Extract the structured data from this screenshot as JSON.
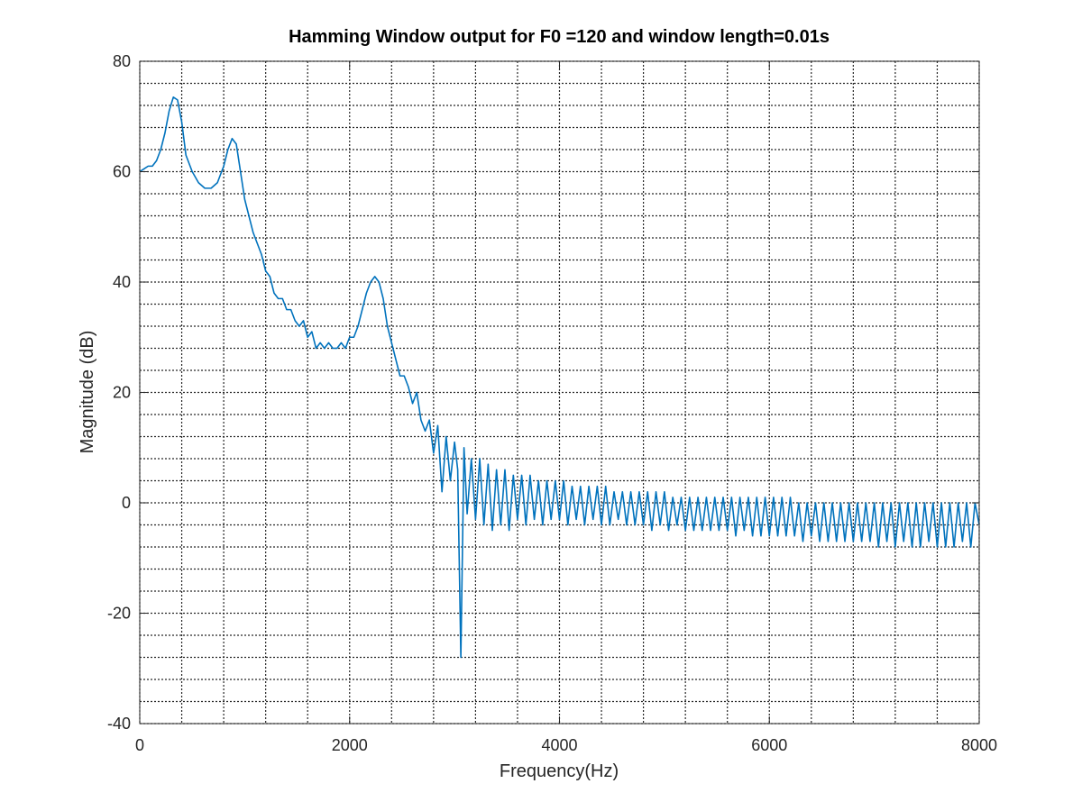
{
  "chart_data": {
    "type": "line",
    "title": "Hamming Window output for F0 =120 and window length=0.01s",
    "xlabel": "Frequency(Hz)",
    "ylabel": "Magnitude (dB)",
    "xlim": [
      0,
      8000
    ],
    "ylim": [
      -40,
      80
    ],
    "xticks": [
      0,
      2000,
      4000,
      6000,
      8000
    ],
    "yticks": [
      -40,
      -20,
      0,
      20,
      40,
      60,
      80
    ],
    "xtick_labels": [
      "0",
      "2000",
      "4000",
      "6000",
      "8000"
    ],
    "ytick_labels": [
      "-40",
      "-20",
      "0",
      "20",
      "40",
      "60",
      "80"
    ],
    "major_grid_x": [
      0,
      400,
      800,
      1200,
      1600,
      2000,
      2400,
      2800,
      3200,
      3600,
      4000,
      4400,
      4800,
      5200,
      5600,
      6000,
      6400,
      6800,
      7200,
      7600,
      8000
    ],
    "major_grid_y": [
      -40,
      -36,
      -32,
      -28,
      -24,
      -20,
      -16,
      -12,
      -8,
      -4,
      0,
      4,
      8,
      12,
      16,
      20,
      24,
      28,
      32,
      36,
      40,
      44,
      48,
      52,
      56,
      60,
      64,
      68,
      72,
      76,
      80
    ],
    "grid": true,
    "line_color": "#0072BD",
    "series": [
      {
        "values": [
          [
            0,
            60
          ],
          [
            40,
            60.5
          ],
          [
            80,
            61
          ],
          [
            120,
            61
          ],
          [
            160,
            62
          ],
          [
            200,
            64
          ],
          [
            240,
            67
          ],
          [
            280,
            71
          ],
          [
            320,
            73.5
          ],
          [
            360,
            73
          ],
          [
            400,
            69
          ],
          [
            440,
            63
          ],
          [
            500,
            60
          ],
          [
            560,
            58
          ],
          [
            620,
            57
          ],
          [
            680,
            57
          ],
          [
            740,
            58
          ],
          [
            800,
            61
          ],
          [
            840,
            64
          ],
          [
            880,
            66
          ],
          [
            920,
            65
          ],
          [
            960,
            60
          ],
          [
            1000,
            55
          ],
          [
            1040,
            52
          ],
          [
            1080,
            49
          ],
          [
            1120,
            47
          ],
          [
            1160,
            45
          ],
          [
            1200,
            42
          ],
          [
            1240,
            41
          ],
          [
            1280,
            38
          ],
          [
            1320,
            37
          ],
          [
            1360,
            37
          ],
          [
            1400,
            35
          ],
          [
            1440,
            35
          ],
          [
            1480,
            33
          ],
          [
            1520,
            32
          ],
          [
            1560,
            33
          ],
          [
            1600,
            30
          ],
          [
            1640,
            31
          ],
          [
            1680,
            28
          ],
          [
            1720,
            29
          ],
          [
            1760,
            28
          ],
          [
            1800,
            29
          ],
          [
            1840,
            28
          ],
          [
            1880,
            28
          ],
          [
            1920,
            29
          ],
          [
            1960,
            28
          ],
          [
            2000,
            30
          ],
          [
            2040,
            30
          ],
          [
            2080,
            32
          ],
          [
            2120,
            35
          ],
          [
            2160,
            38
          ],
          [
            2200,
            40
          ],
          [
            2240,
            41
          ],
          [
            2280,
            40
          ],
          [
            2320,
            37
          ],
          [
            2360,
            32
          ],
          [
            2400,
            29
          ],
          [
            2440,
            26
          ],
          [
            2480,
            23
          ],
          [
            2520,
            23
          ],
          [
            2560,
            21
          ],
          [
            2600,
            18
          ],
          [
            2640,
            20
          ],
          [
            2680,
            15
          ],
          [
            2720,
            13
          ],
          [
            2760,
            15
          ],
          [
            2800,
            9
          ],
          [
            2840,
            14
          ],
          [
            2880,
            2
          ],
          [
            2920,
            12
          ],
          [
            2960,
            4
          ],
          [
            3000,
            11
          ],
          [
            3030,
            6
          ],
          [
            3060,
            -28
          ],
          [
            3090,
            10
          ],
          [
            3120,
            -2
          ],
          [
            3160,
            8
          ],
          [
            3200,
            -3
          ],
          [
            3240,
            8
          ],
          [
            3280,
            -4
          ],
          [
            3320,
            7
          ],
          [
            3360,
            -5
          ],
          [
            3400,
            6
          ],
          [
            3440,
            -4
          ],
          [
            3480,
            6
          ],
          [
            3520,
            -5
          ],
          [
            3560,
            5
          ],
          [
            3600,
            -3
          ],
          [
            3640,
            5
          ],
          [
            3680,
            -4
          ],
          [
            3720,
            5
          ],
          [
            3760,
            -3
          ],
          [
            3800,
            4
          ],
          [
            3840,
            -4
          ],
          [
            3880,
            4
          ],
          [
            3920,
            -3
          ],
          [
            3960,
            4
          ],
          [
            4000,
            -3
          ],
          [
            4040,
            4
          ],
          [
            4080,
            -4
          ],
          [
            4120,
            3
          ],
          [
            4160,
            -3
          ],
          [
            4200,
            3
          ],
          [
            4240,
            -4
          ],
          [
            4280,
            3
          ],
          [
            4320,
            -3
          ],
          [
            4360,
            3
          ],
          [
            4400,
            -4
          ],
          [
            4440,
            3
          ],
          [
            4480,
            -4
          ],
          [
            4520,
            2
          ],
          [
            4560,
            -3
          ],
          [
            4600,
            2
          ],
          [
            4640,
            -4
          ],
          [
            4680,
            2
          ],
          [
            4720,
            -4
          ],
          [
            4760,
            2
          ],
          [
            4800,
            -4
          ],
          [
            4840,
            2
          ],
          [
            4880,
            -5
          ],
          [
            4920,
            2
          ],
          [
            4960,
            -4
          ],
          [
            5000,
            2
          ],
          [
            5040,
            -5
          ],
          [
            5080,
            1
          ],
          [
            5120,
            -4
          ],
          [
            5160,
            1
          ],
          [
            5200,
            -5
          ],
          [
            5240,
            1
          ],
          [
            5280,
            -5
          ],
          [
            5320,
            1
          ],
          [
            5360,
            -5
          ],
          [
            5400,
            1
          ],
          [
            5440,
            -5
          ],
          [
            5480,
            1
          ],
          [
            5520,
            -5
          ],
          [
            5560,
            1
          ],
          [
            5600,
            -5
          ],
          [
            5640,
            1
          ],
          [
            5680,
            -6
          ],
          [
            5720,
            1
          ],
          [
            5760,
            -5
          ],
          [
            5800,
            1
          ],
          [
            5840,
            -6
          ],
          [
            5880,
            1
          ],
          [
            5920,
            -6
          ],
          [
            5960,
            1
          ],
          [
            6000,
            -6
          ],
          [
            6040,
            1
          ],
          [
            6080,
            -6
          ],
          [
            6120,
            1
          ],
          [
            6160,
            -6
          ],
          [
            6200,
            1
          ],
          [
            6240,
            -6
          ],
          [
            6280,
            0
          ],
          [
            6320,
            -7
          ],
          [
            6360,
            0
          ],
          [
            6400,
            -6
          ],
          [
            6440,
            0
          ],
          [
            6480,
            -7
          ],
          [
            6520,
            0
          ],
          [
            6560,
            -7
          ],
          [
            6600,
            0
          ],
          [
            6640,
            -7
          ],
          [
            6680,
            0
          ],
          [
            6720,
            -7
          ],
          [
            6760,
            0
          ],
          [
            6800,
            -7
          ],
          [
            6840,
            0
          ],
          [
            6880,
            -7
          ],
          [
            6920,
            0
          ],
          [
            6960,
            -7
          ],
          [
            7000,
            0
          ],
          [
            7040,
            -8
          ],
          [
            7080,
            0
          ],
          [
            7120,
            -7
          ],
          [
            7160,
            0
          ],
          [
            7200,
            -8
          ],
          [
            7240,
            0
          ],
          [
            7280,
            -7
          ],
          [
            7320,
            0
          ],
          [
            7360,
            -8
          ],
          [
            7400,
            0
          ],
          [
            7440,
            -8
          ],
          [
            7480,
            0
          ],
          [
            7520,
            -7
          ],
          [
            7560,
            0
          ],
          [
            7600,
            -8
          ],
          [
            7640,
            0
          ],
          [
            7680,
            -8
          ],
          [
            7720,
            0
          ],
          [
            7760,
            -8
          ],
          [
            7800,
            0
          ],
          [
            7840,
            -7
          ],
          [
            7880,
            0
          ],
          [
            7920,
            -8
          ],
          [
            7960,
            0
          ],
          [
            8000,
            -4
          ]
        ]
      }
    ]
  }
}
